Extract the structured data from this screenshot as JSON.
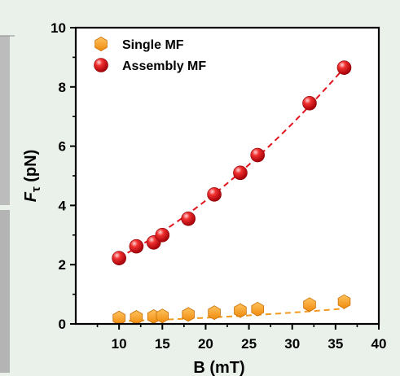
{
  "chart_data": {
    "type": "scatter",
    "xlabel": "B (mT)",
    "ylabel_main": "F",
    "ylabel_sub": "τ",
    "ylabel_unit": " (pN)",
    "xlim": [
      5,
      40
    ],
    "ylim": [
      0,
      10
    ],
    "x_ticks": [
      10,
      15,
      20,
      25,
      30,
      35,
      40
    ],
    "y_ticks": [
      0,
      2,
      4,
      6,
      8,
      10
    ],
    "grid": false,
    "legend_position": "top-left",
    "series": [
      {
        "name": "Single MF",
        "marker": "hexagon",
        "color": "#f39a1e",
        "line": "dashed",
        "x": [
          10,
          12,
          14,
          15,
          18,
          21,
          24,
          26,
          32,
          36
        ],
        "y": [
          0.2,
          0.22,
          0.25,
          0.27,
          0.32,
          0.38,
          0.45,
          0.5,
          0.65,
          0.75
        ],
        "fit_quadratic": [
          0.04,
          0.00222,
          0.000307
        ]
      },
      {
        "name": "Assembly MF",
        "marker": "sphere",
        "color": "#e0141c",
        "line": "dashed",
        "x": [
          10,
          12,
          14,
          15,
          18,
          21,
          24,
          26,
          32,
          36
        ],
        "y": [
          2.22,
          2.62,
          2.75,
          3.0,
          3.55,
          4.37,
          5.1,
          5.7,
          7.45,
          8.65
        ],
        "fit_quadratic": [
          1.0,
          0.09,
          0.0034
        ]
      }
    ]
  }
}
